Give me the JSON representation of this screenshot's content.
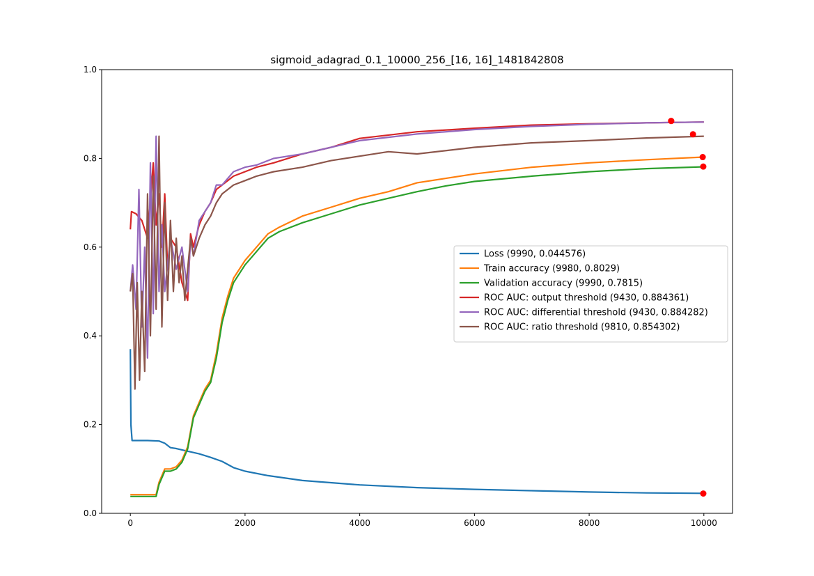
{
  "chart_data": {
    "type": "line",
    "title": "sigmoid_adagrad_0.1_10000_256_[16, 16]_1481842808",
    "xlabel": "",
    "ylabel": "",
    "xlim": [
      -500,
      10500
    ],
    "ylim": [
      0.0,
      1.0
    ],
    "xticks": [
      0,
      2000,
      4000,
      6000,
      8000,
      10000
    ],
    "yticks": [
      0.0,
      0.2,
      0.4,
      0.6,
      0.8,
      1.0
    ],
    "xtick_labels": [
      "0",
      "2000",
      "4000",
      "6000",
      "8000",
      "10000"
    ],
    "ytick_labels": [
      "0.0",
      "0.2",
      "0.4",
      "0.6",
      "0.8",
      "1.0"
    ],
    "grid": false,
    "legend_position": "center-right",
    "series": [
      {
        "name": "Loss (9990, 0.044576)",
        "color": "#1f77b4",
        "x": [
          0,
          10,
          30,
          100,
          300,
          500,
          600,
          700,
          800,
          1000,
          1200,
          1400,
          1600,
          1800,
          2000,
          2400,
          3000,
          4000,
          5000,
          6000,
          7000,
          8000,
          9000,
          10000
        ],
        "y": [
          0.37,
          0.2,
          0.164,
          0.164,
          0.164,
          0.163,
          0.158,
          0.148,
          0.146,
          0.14,
          0.134,
          0.126,
          0.117,
          0.103,
          0.095,
          0.085,
          0.074,
          0.064,
          0.058,
          0.054,
          0.051,
          0.048,
          0.046,
          0.045
        ],
        "marker": {
          "x": 9990,
          "y": 0.044576
        }
      },
      {
        "name": "Train accuracy (9980, 0.8029)",
        "color": "#ff7f0e",
        "x": [
          0,
          200,
          450,
          500,
          600,
          700,
          800,
          900,
          1000,
          1100,
          1200,
          1300,
          1400,
          1500,
          1600,
          1700,
          1800,
          2000,
          2200,
          2400,
          2600,
          3000,
          3500,
          4000,
          4500,
          5000,
          5500,
          6000,
          7000,
          8000,
          9000,
          10000
        ],
        "y": [
          0.042,
          0.042,
          0.042,
          0.07,
          0.1,
          0.1,
          0.105,
          0.12,
          0.15,
          0.22,
          0.25,
          0.28,
          0.3,
          0.36,
          0.44,
          0.49,
          0.53,
          0.57,
          0.6,
          0.63,
          0.645,
          0.67,
          0.69,
          0.71,
          0.725,
          0.745,
          0.755,
          0.765,
          0.78,
          0.79,
          0.797,
          0.803
        ],
        "marker": {
          "x": 9980,
          "y": 0.8029
        }
      },
      {
        "name": "Validation accuracy (9990, 0.7815)",
        "color": "#2ca02c",
        "x": [
          0,
          200,
          450,
          500,
          600,
          700,
          800,
          900,
          1000,
          1100,
          1200,
          1300,
          1400,
          1500,
          1600,
          1700,
          1800,
          2000,
          2200,
          2400,
          2600,
          3000,
          3500,
          4000,
          4500,
          5000,
          5500,
          6000,
          7000,
          8000,
          9000,
          10000
        ],
        "y": [
          0.038,
          0.038,
          0.038,
          0.065,
          0.095,
          0.095,
          0.1,
          0.115,
          0.145,
          0.215,
          0.245,
          0.275,
          0.295,
          0.35,
          0.43,
          0.48,
          0.52,
          0.56,
          0.59,
          0.62,
          0.635,
          0.655,
          0.675,
          0.695,
          0.71,
          0.725,
          0.738,
          0.748,
          0.76,
          0.77,
          0.777,
          0.781
        ],
        "marker": {
          "x": 9990,
          "y": 0.7815
        }
      },
      {
        "name": "ROC AUC: output threshold (9430, 0.884361)",
        "color": "#d62728",
        "x": [
          0,
          20,
          100,
          200,
          300,
          400,
          450,
          500,
          550,
          600,
          650,
          700,
          800,
          900,
          1000,
          1050,
          1100,
          1200,
          1300,
          1400,
          1500,
          1600,
          1800,
          2000,
          2200,
          2500,
          3000,
          3500,
          4000,
          5000,
          6000,
          7000,
          8000,
          9000,
          10000
        ],
        "y": [
          0.64,
          0.68,
          0.675,
          0.66,
          0.62,
          0.79,
          0.65,
          0.72,
          0.6,
          0.72,
          0.55,
          0.62,
          0.6,
          0.52,
          0.48,
          0.63,
          0.6,
          0.65,
          0.68,
          0.7,
          0.73,
          0.74,
          0.76,
          0.77,
          0.78,
          0.79,
          0.81,
          0.825,
          0.845,
          0.86,
          0.868,
          0.875,
          0.878,
          0.88,
          0.882
        ],
        "marker": {
          "x": 9430,
          "y": 0.884361
        }
      },
      {
        "name": "ROC AUC: differential threshold (9430, 0.884282)",
        "color": "#9467bd",
        "x": [
          0,
          40,
          100,
          150,
          200,
          250,
          300,
          350,
          400,
          450,
          500,
          550,
          600,
          700,
          800,
          900,
          1000,
          1050,
          1100,
          1200,
          1300,
          1400,
          1500,
          1600,
          1800,
          2000,
          2200,
          2500,
          3000,
          3500,
          4000,
          5000,
          6000,
          7000,
          8000,
          9000,
          10000
        ],
        "y": [
          0.5,
          0.56,
          0.46,
          0.73,
          0.42,
          0.6,
          0.35,
          0.79,
          0.45,
          0.85,
          0.5,
          0.65,
          0.5,
          0.62,
          0.55,
          0.6,
          0.5,
          0.62,
          0.58,
          0.66,
          0.68,
          0.7,
          0.74,
          0.74,
          0.77,
          0.78,
          0.785,
          0.8,
          0.81,
          0.825,
          0.84,
          0.855,
          0.865,
          0.872,
          0.877,
          0.88,
          0.882
        ],
        "marker": {
          "x": 9430,
          "y": 0.884282
        }
      },
      {
        "name": "ROC AUC: ratio threshold (9810, 0.854302)",
        "color": "#8c564b",
        "x": [
          0,
          40,
          80,
          120,
          160,
          200,
          250,
          300,
          350,
          400,
          450,
          500,
          550,
          600,
          650,
          700,
          750,
          800,
          850,
          900,
          950,
          1000,
          1050,
          1100,
          1200,
          1300,
          1400,
          1500,
          1600,
          1800,
          2000,
          2200,
          2500,
          3000,
          3500,
          4000,
          4500,
          5000,
          6000,
          7000,
          8000,
          9000,
          10000
        ],
        "y": [
          0.5,
          0.54,
          0.28,
          0.52,
          0.3,
          0.5,
          0.32,
          0.72,
          0.4,
          0.76,
          0.46,
          0.85,
          0.42,
          0.7,
          0.48,
          0.66,
          0.5,
          0.62,
          0.52,
          0.58,
          0.48,
          0.55,
          0.62,
          0.58,
          0.62,
          0.65,
          0.67,
          0.7,
          0.72,
          0.74,
          0.75,
          0.76,
          0.77,
          0.78,
          0.795,
          0.805,
          0.815,
          0.81,
          0.825,
          0.835,
          0.84,
          0.846,
          0.85
        ],
        "marker": {
          "x": 9810,
          "y": 0.854302
        }
      }
    ]
  }
}
